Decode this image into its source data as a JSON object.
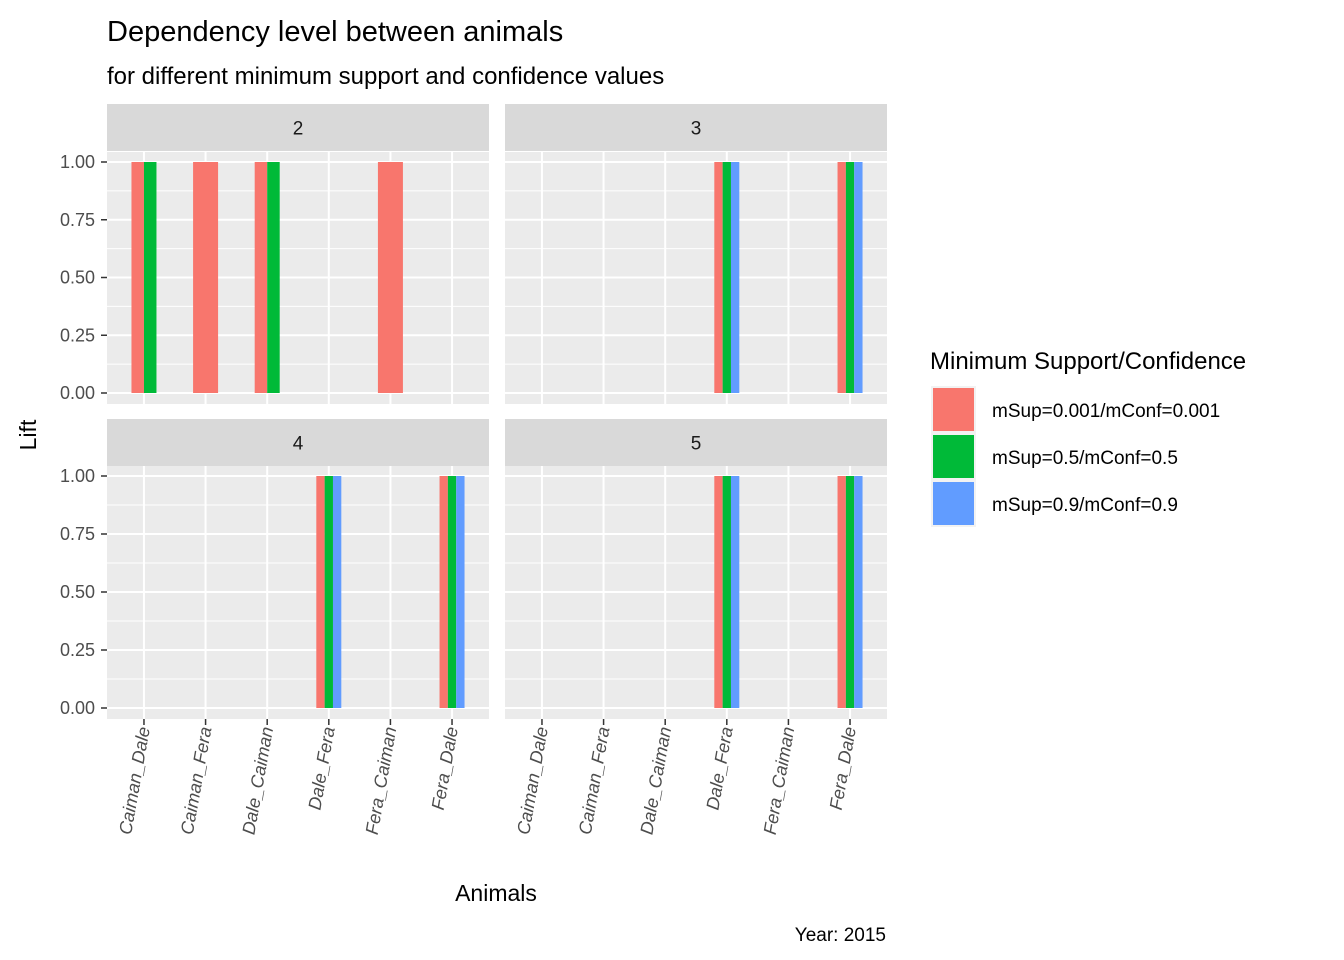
{
  "chart_data": {
    "type": "bar",
    "title": "Dependency level between animals",
    "subtitle": "for different minimum support and confidence values",
    "xlabel": "Animals",
    "ylabel": "Lift",
    "caption": "Year: 2015",
    "categories": [
      "Caiman_Dale",
      "Caiman_Fera",
      "Dale_Caiman",
      "Dale_Fera",
      "Fera_Caiman",
      "Fera_Dale"
    ],
    "ylim": [
      0,
      1
    ],
    "yticks": [
      "0.00",
      "0.25",
      "0.50",
      "0.75",
      "1.00"
    ],
    "legend": {
      "title": "Minimum Support/Confidence",
      "position": "right"
    },
    "series_meta": [
      {
        "name": "mSup=0.001/mConf=0.001",
        "color": "#F8766D"
      },
      {
        "name": "mSup=0.5/mConf=0.5",
        "color": "#00BA38"
      },
      {
        "name": "mSup=0.9/mConf=0.9",
        "color": "#619CFF"
      }
    ],
    "facets": [
      {
        "label": "2",
        "series": [
          {
            "name": "mSup=0.001/mConf=0.001",
            "values": [
              1,
              1,
              1,
              null,
              1,
              null
            ]
          },
          {
            "name": "mSup=0.5/mConf=0.5",
            "values": [
              1,
              null,
              1,
              null,
              null,
              null
            ]
          },
          {
            "name": "mSup=0.9/mConf=0.9",
            "values": [
              null,
              null,
              null,
              null,
              null,
              null
            ]
          }
        ]
      },
      {
        "label": "3",
        "series": [
          {
            "name": "mSup=0.001/mConf=0.001",
            "values": [
              null,
              null,
              null,
              1,
              null,
              1
            ]
          },
          {
            "name": "mSup=0.5/mConf=0.5",
            "values": [
              null,
              null,
              null,
              1,
              null,
              1
            ]
          },
          {
            "name": "mSup=0.9/mConf=0.9",
            "values": [
              null,
              null,
              null,
              1,
              null,
              1
            ]
          }
        ]
      },
      {
        "label": "4",
        "series": [
          {
            "name": "mSup=0.001/mConf=0.001",
            "values": [
              null,
              null,
              null,
              1,
              null,
              1
            ]
          },
          {
            "name": "mSup=0.5/mConf=0.5",
            "values": [
              null,
              null,
              null,
              1,
              null,
              1
            ]
          },
          {
            "name": "mSup=0.9/mConf=0.9",
            "values": [
              null,
              null,
              null,
              1,
              null,
              1
            ]
          }
        ]
      },
      {
        "label": "5",
        "series": [
          {
            "name": "mSup=0.001/mConf=0.001",
            "values": [
              null,
              null,
              null,
              1,
              null,
              1
            ]
          },
          {
            "name": "mSup=0.5/mConf=0.5",
            "values": [
              null,
              null,
              null,
              1,
              null,
              1
            ]
          },
          {
            "name": "mSup=0.9/mConf=0.9",
            "values": [
              null,
              null,
              null,
              1,
              null,
              1
            ]
          }
        ]
      }
    ],
    "grid": true
  }
}
